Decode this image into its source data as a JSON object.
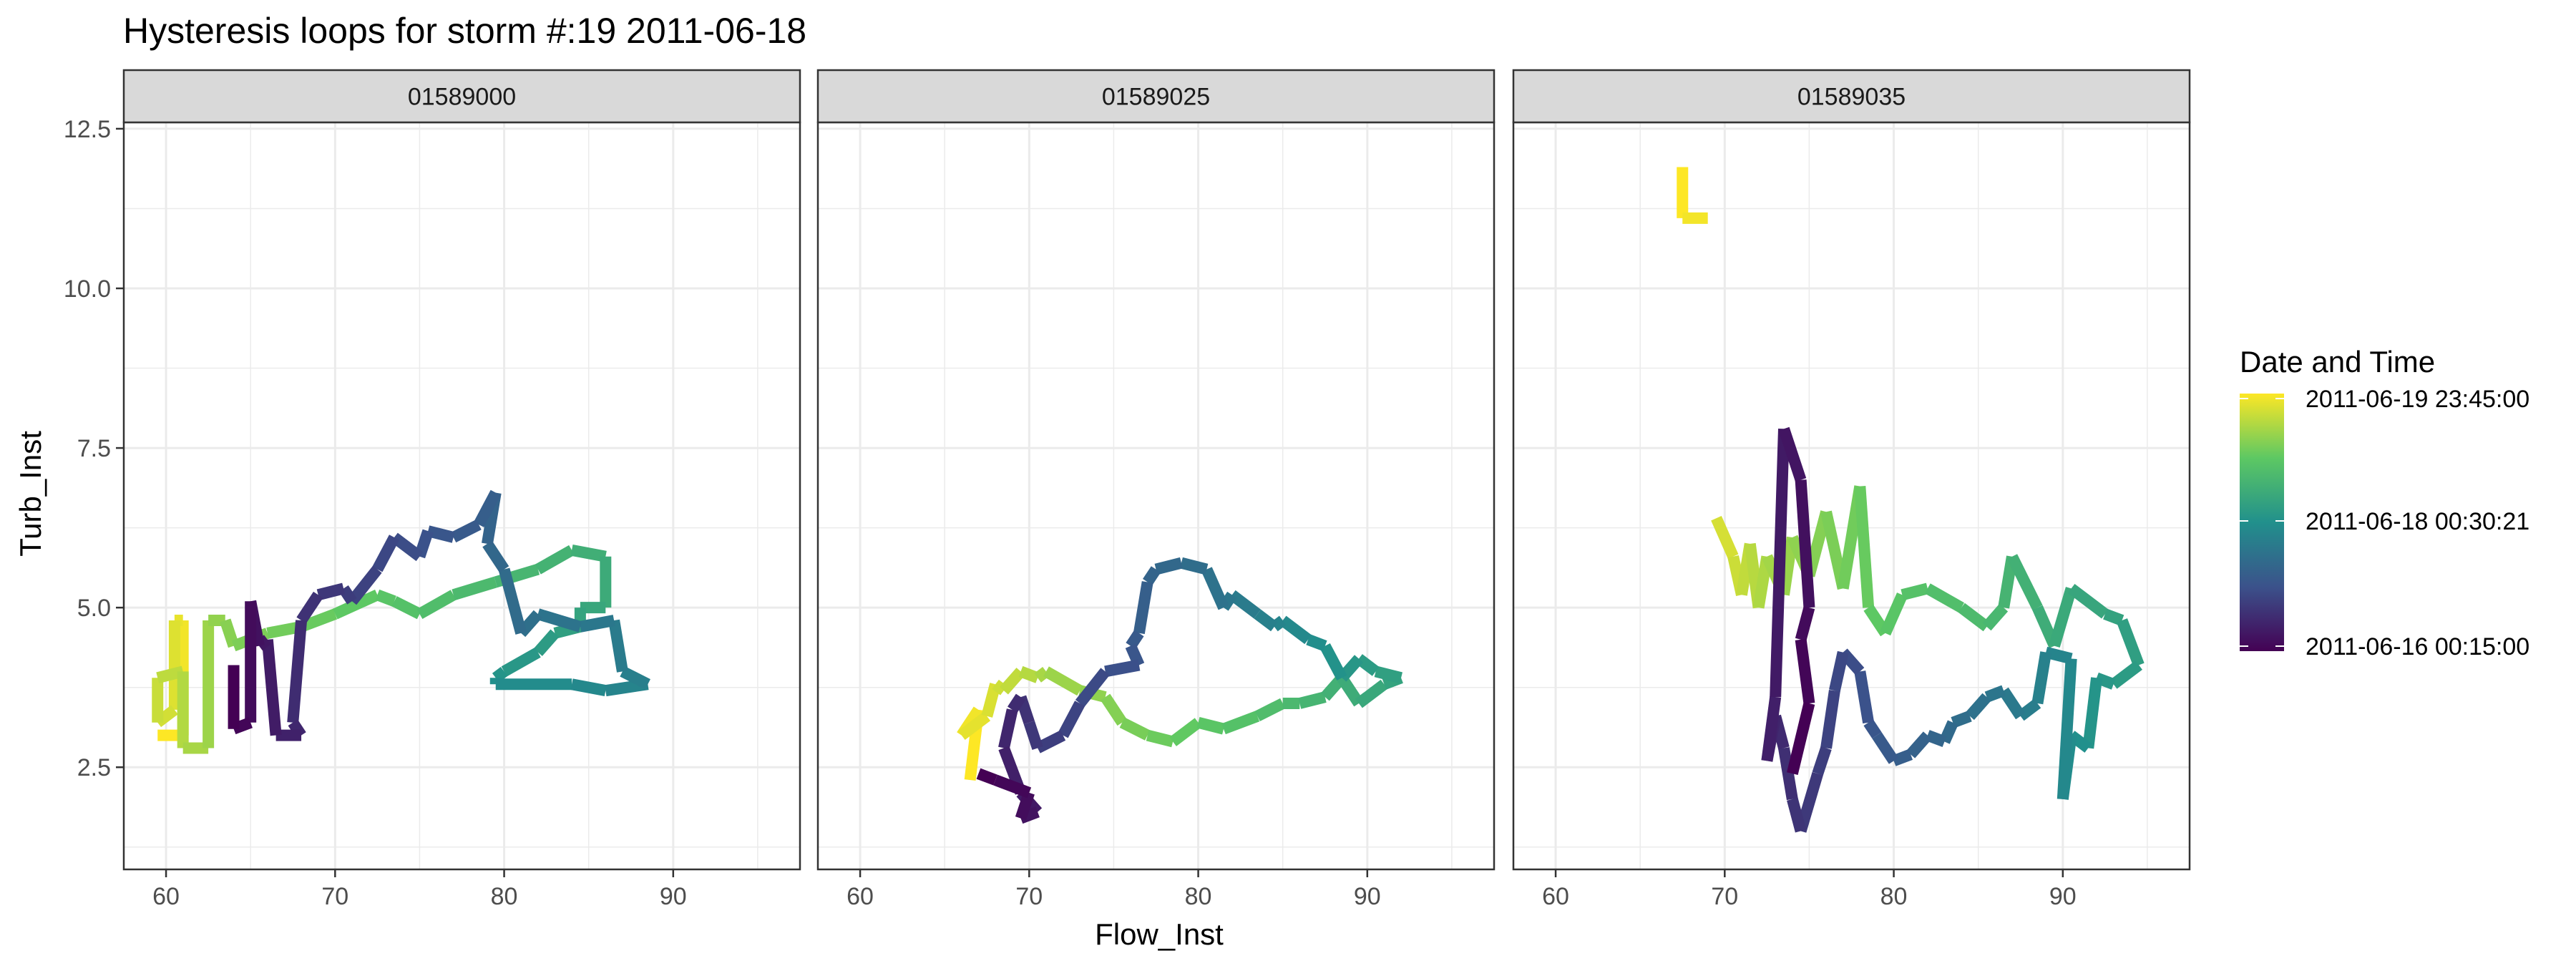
{
  "chart_data": {
    "type": "line",
    "title": "Hysteresis loops for storm #:19   2011-06-18",
    "xlabel": "Flow_Inst",
    "ylabel": "Turb_Inst",
    "xlim": [
      57.5,
      97.5
    ],
    "ylim": [
      0.9,
      12.6
    ],
    "x_ticks": [
      60,
      70,
      80,
      90
    ],
    "x_tick_labels": [
      "60",
      "70",
      "80",
      "90"
    ],
    "y_ticks": [
      2.5,
      5.0,
      7.5,
      10.0,
      12.5
    ],
    "y_tick_labels": [
      "2.5",
      "5.0",
      "7.5",
      "10.0",
      "12.5"
    ],
    "grid": true,
    "legend": {
      "title": "Date and Time",
      "position": "right",
      "labels": [
        "2011-06-19 23:45:00",
        "2011-06-18 00:30:21",
        "2011-06-16 00:15:00"
      ],
      "color_scale": [
        "#440154",
        "#3b528b",
        "#21908c",
        "#5dc863",
        "#fde725"
      ]
    },
    "panels": [
      {
        "name": "01589000",
        "points": [
          [
            59.5,
            3.0
          ],
          [
            61.0,
            3.0
          ],
          [
            61.0,
            4.8
          ],
          [
            60.5,
            4.8
          ],
          [
            60.5,
            3.4
          ],
          [
            59.5,
            3.2
          ],
          [
            59.5,
            3.9
          ],
          [
            61.0,
            4.0
          ],
          [
            61.0,
            2.8
          ],
          [
            62.5,
            2.8
          ],
          [
            62.5,
            4.8
          ],
          [
            63.5,
            4.8
          ],
          [
            64.0,
            4.4
          ],
          [
            66.0,
            4.6
          ],
          [
            68.0,
            4.7
          ],
          [
            70.0,
            4.9
          ],
          [
            72.5,
            5.2
          ],
          [
            73.5,
            5.1
          ],
          [
            75.0,
            4.9
          ],
          [
            77.0,
            5.2
          ],
          [
            79.5,
            5.4
          ],
          [
            82.0,
            5.6
          ],
          [
            84.0,
            5.9
          ],
          [
            86.0,
            5.8
          ],
          [
            86.0,
            5.0
          ],
          [
            84.5,
            5.0
          ],
          [
            84.5,
            4.7
          ],
          [
            83.0,
            4.6
          ],
          [
            82.0,
            4.3
          ],
          [
            80.0,
            4.0
          ],
          [
            79.5,
            3.9
          ],
          [
            79.5,
            3.8
          ],
          [
            84.0,
            3.8
          ],
          [
            86.0,
            3.7
          ],
          [
            88.5,
            3.8
          ],
          [
            87.0,
            4.0
          ],
          [
            86.5,
            4.8
          ],
          [
            84.5,
            4.7
          ],
          [
            82.0,
            4.9
          ],
          [
            81.0,
            4.6
          ],
          [
            80.0,
            5.6
          ],
          [
            79.0,
            6.0
          ],
          [
            79.5,
            6.8
          ],
          [
            78.5,
            6.3
          ],
          [
            77.0,
            6.1
          ],
          [
            75.5,
            6.2
          ],
          [
            75.0,
            5.8
          ],
          [
            73.5,
            6.1
          ],
          [
            72.5,
            5.6
          ],
          [
            71.0,
            5.1
          ],
          [
            70.5,
            5.3
          ],
          [
            69.0,
            5.2
          ],
          [
            68.0,
            4.8
          ],
          [
            67.5,
            3.2
          ],
          [
            68.0,
            3.0
          ],
          [
            66.5,
            3.0
          ],
          [
            66.0,
            4.5
          ],
          [
            65.5,
            4.4
          ],
          [
            65.0,
            5.1
          ],
          [
            65.0,
            3.2
          ],
          [
            64.0,
            3.1
          ],
          [
            64.0,
            4.1
          ]
        ]
      },
      {
        "name": "01589025",
        "points": [
          [
            66.5,
            2.3
          ],
          [
            67.0,
            3.4
          ],
          [
            66.0,
            3.0
          ],
          [
            67.5,
            3.3
          ],
          [
            68.0,
            3.8
          ],
          [
            68.5,
            3.7
          ],
          [
            69.5,
            4.0
          ],
          [
            70.5,
            3.9
          ],
          [
            71.0,
            4.0
          ],
          [
            73.0,
            3.7
          ],
          [
            74.5,
            3.6
          ],
          [
            75.5,
            3.2
          ],
          [
            77.0,
            3.0
          ],
          [
            78.5,
            2.9
          ],
          [
            80.0,
            3.2
          ],
          [
            81.5,
            3.1
          ],
          [
            83.5,
            3.3
          ],
          [
            85.0,
            3.5
          ],
          [
            86.0,
            3.5
          ],
          [
            87.5,
            3.6
          ],
          [
            88.5,
            3.9
          ],
          [
            89.5,
            3.5
          ],
          [
            91.0,
            3.8
          ],
          [
            92.0,
            3.9
          ],
          [
            90.5,
            4.0
          ],
          [
            89.5,
            4.2
          ],
          [
            88.5,
            3.9
          ],
          [
            87.5,
            4.4
          ],
          [
            86.5,
            4.5
          ],
          [
            85.0,
            4.8
          ],
          [
            84.5,
            4.7
          ],
          [
            83.5,
            4.9
          ],
          [
            82.0,
            5.2
          ],
          [
            81.5,
            5.0
          ],
          [
            80.5,
            5.6
          ],
          [
            79.0,
            5.7
          ],
          [
            77.5,
            5.6
          ],
          [
            77.0,
            5.4
          ],
          [
            76.5,
            4.6
          ],
          [
            76.0,
            4.4
          ],
          [
            76.5,
            4.1
          ],
          [
            74.5,
            4.0
          ],
          [
            73.0,
            3.5
          ],
          [
            72.0,
            3.0
          ],
          [
            70.5,
            2.8
          ],
          [
            70.0,
            3.2
          ],
          [
            69.5,
            3.6
          ],
          [
            69.0,
            3.4
          ],
          [
            68.5,
            2.8
          ],
          [
            69.5,
            2.1
          ],
          [
            70.5,
            1.8
          ],
          [
            69.5,
            1.7
          ],
          [
            70.0,
            2.1
          ],
          [
            68.0,
            2.3
          ],
          [
            67.0,
            2.4
          ]
        ]
      },
      {
        "name": "01589035",
        "points": [
          [
            67.5,
            11.9
          ],
          [
            67.5,
            11.1
          ],
          [
            69.0,
            11.1
          ],
          null,
          [
            69.5,
            6.4
          ],
          [
            70.5,
            5.8
          ],
          [
            71.0,
            5.2
          ],
          [
            71.5,
            6.0
          ],
          [
            72.0,
            5.0
          ],
          [
            72.5,
            5.8
          ],
          [
            73.5,
            5.2
          ],
          [
            74.0,
            6.1
          ],
          [
            75.0,
            5.5
          ],
          [
            76.0,
            6.5
          ],
          [
            77.0,
            5.3
          ],
          [
            78.0,
            6.9
          ],
          [
            78.5,
            5.0
          ],
          [
            79.5,
            4.6
          ],
          [
            80.5,
            5.2
          ],
          [
            82.0,
            5.3
          ],
          [
            84.0,
            5.0
          ],
          [
            85.5,
            4.7
          ],
          [
            86.5,
            5.0
          ],
          [
            87.0,
            5.8
          ],
          [
            88.5,
            5.0
          ],
          [
            89.5,
            4.4
          ],
          [
            90.5,
            5.3
          ],
          [
            92.5,
            4.9
          ],
          [
            93.5,
            4.8
          ],
          [
            94.5,
            4.1
          ],
          [
            93.0,
            3.8
          ],
          [
            92.0,
            3.9
          ],
          [
            91.5,
            2.8
          ],
          [
            90.5,
            3.0
          ],
          [
            90.0,
            2.0
          ],
          [
            90.5,
            4.2
          ],
          [
            89.0,
            4.3
          ],
          [
            88.5,
            3.5
          ],
          [
            87.5,
            3.3
          ],
          [
            86.5,
            3.7
          ],
          [
            85.5,
            3.6
          ],
          [
            84.5,
            3.3
          ],
          [
            83.5,
            3.2
          ],
          [
            83.0,
            2.9
          ],
          [
            82.0,
            3.0
          ],
          [
            81.0,
            2.7
          ],
          [
            80.0,
            2.6
          ],
          [
            79.0,
            3.0
          ],
          [
            78.5,
            3.2
          ],
          [
            78.0,
            4.0
          ],
          [
            77.0,
            4.3
          ],
          [
            76.5,
            3.7
          ],
          [
            76.0,
            2.8
          ],
          [
            75.5,
            2.4
          ],
          [
            74.5,
            1.5
          ],
          [
            74.0,
            2.0
          ],
          [
            73.5,
            2.8
          ],
          [
            73.0,
            3.3
          ],
          [
            72.5,
            2.6
          ],
          [
            73.0,
            3.6
          ],
          [
            73.5,
            7.8
          ],
          [
            74.5,
            7.0
          ],
          [
            75.0,
            5.0
          ],
          [
            74.5,
            4.5
          ],
          [
            75.0,
            3.5
          ],
          [
            74.0,
            2.4
          ]
        ]
      }
    ]
  }
}
